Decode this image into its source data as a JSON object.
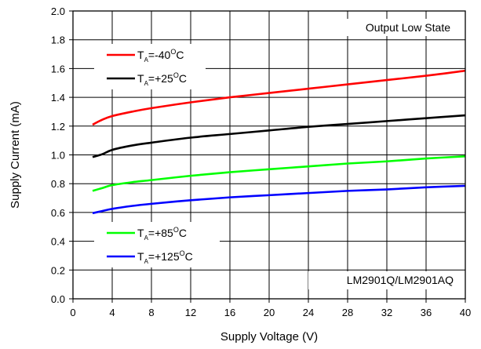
{
  "chart_data": {
    "type": "line",
    "xlabel": "Supply Voltage (V)",
    "ylabel": "Supply Current (mA)",
    "xlim": [
      0,
      40
    ],
    "ylim": [
      0.0,
      2.0
    ],
    "x_ticks": [
      "0",
      "4",
      "8",
      "12",
      "16",
      "20",
      "24",
      "28",
      "32",
      "36",
      "40"
    ],
    "y_ticks": [
      "0.0",
      "0.2",
      "0.4",
      "0.6",
      "0.8",
      "1.0",
      "1.2",
      "1.4",
      "1.6",
      "1.8",
      "2.0"
    ],
    "grid": true,
    "annotations": {
      "top_right": "Output Low State",
      "bottom_right": "LM2901Q/LM2901AQ"
    },
    "series": [
      {
        "name": "T_A=-40°C",
        "label_main": "T",
        "label_sub": "A",
        "label_value": "=-40",
        "label_sup": "O",
        "label_unit": "C",
        "color": "#ff0000",
        "x": [
          2,
          3,
          4,
          6,
          8,
          12,
          16,
          20,
          24,
          28,
          32,
          36,
          40
        ],
        "y": [
          1.21,
          1.245,
          1.27,
          1.3,
          1.325,
          1.365,
          1.4,
          1.43,
          1.46,
          1.49,
          1.52,
          1.55,
          1.585
        ]
      },
      {
        "name": "T_A=+25°C",
        "label_main": "T",
        "label_sub": "A",
        "label_value": "=+25",
        "label_sup": "O",
        "label_unit": "C",
        "color": "#000000",
        "x": [
          2,
          3,
          4,
          6,
          8,
          12,
          16,
          20,
          24,
          28,
          32,
          36,
          40
        ],
        "y": [
          0.985,
          1.005,
          1.035,
          1.065,
          1.085,
          1.12,
          1.145,
          1.17,
          1.195,
          1.215,
          1.235,
          1.255,
          1.275
        ]
      },
      {
        "name": "T_A=+85°C",
        "label_main": "T",
        "label_sub": "A",
        "label_value": "=+85",
        "label_sup": "O",
        "label_unit": "C",
        "color": "#00ff00",
        "x": [
          2,
          3,
          4,
          6,
          8,
          12,
          16,
          20,
          24,
          28,
          32,
          36,
          40
        ],
        "y": [
          0.75,
          0.77,
          0.79,
          0.81,
          0.825,
          0.855,
          0.88,
          0.9,
          0.92,
          0.94,
          0.955,
          0.975,
          0.99
        ]
      },
      {
        "name": "T_A=+125°C",
        "label_main": "T",
        "label_sub": "A",
        "label_value": "=+125",
        "label_sup": "O",
        "label_unit": "C",
        "color": "#0000ff",
        "x": [
          2,
          3,
          4,
          6,
          8,
          12,
          16,
          20,
          24,
          28,
          32,
          36,
          40
        ],
        "y": [
          0.595,
          0.61,
          0.625,
          0.645,
          0.66,
          0.685,
          0.705,
          0.72,
          0.735,
          0.75,
          0.76,
          0.775,
          0.785
        ]
      }
    ]
  }
}
